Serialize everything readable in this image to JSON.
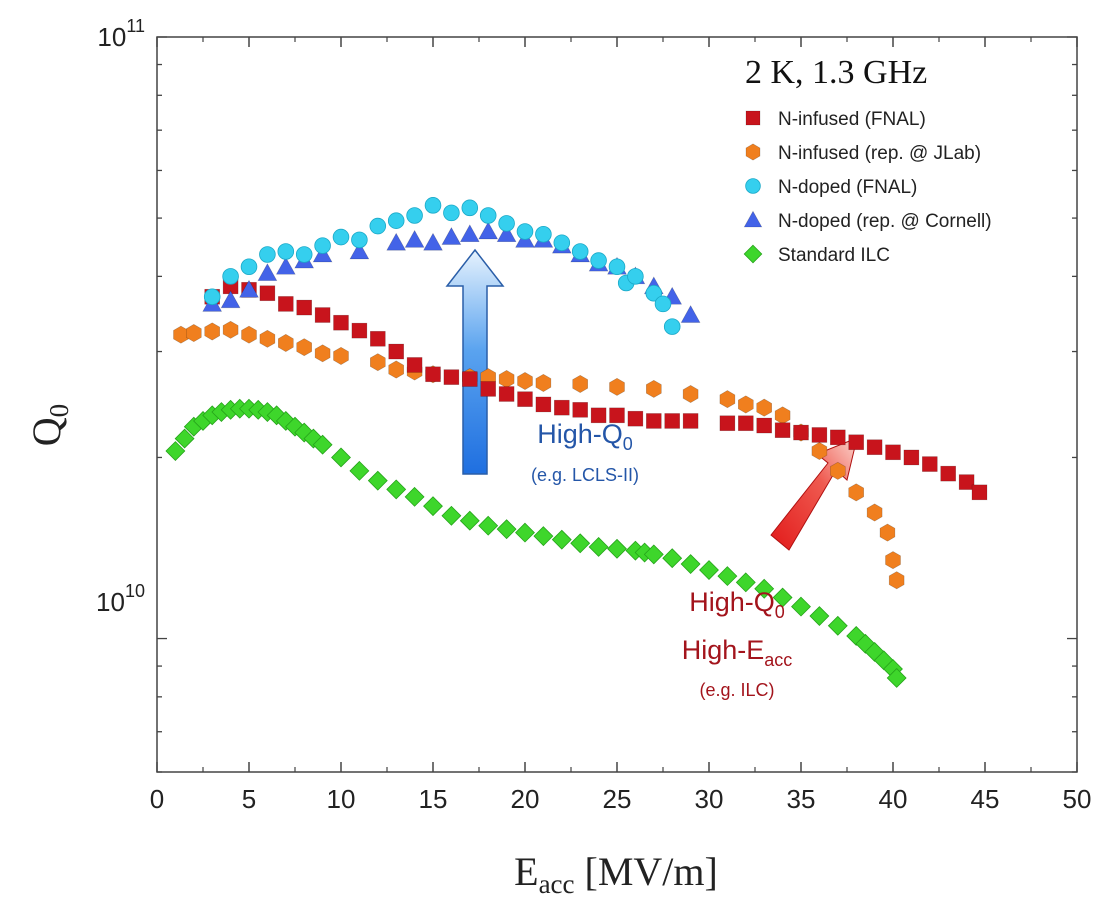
{
  "chart_data": {
    "type": "scatter",
    "title": "",
    "xlabel": "E",
    "xlabel_sub": "acc",
    "xlabel_unit": "[MV/m]",
    "ylabel": "Q",
    "ylabel_sub": "0",
    "log_y": true,
    "xlim": [
      0,
      50
    ],
    "ylim": [
      6000000000.0,
      100000000000.0
    ],
    "x_ticks": [
      "0",
      "5",
      "10",
      "15",
      "20",
      "25",
      "30",
      "35",
      "40",
      "45",
      "50"
    ],
    "y_tick_labels": [
      {
        "value": 100000000000.0,
        "base": "10",
        "exp": "11"
      },
      {
        "value": 10000000000.0,
        "base": "10",
        "exp": "10"
      }
    ],
    "grid": false,
    "legend_title": "2 K, 1.3 GHz",
    "legend_position": "top-right",
    "series": [
      {
        "name": "N-infused (FNAL)",
        "color": "#c8141c",
        "marker": "square",
        "points": [
          [
            3,
            37000000000.0
          ],
          [
            4,
            38500000000.0
          ],
          [
            5,
            38000000000.0
          ],
          [
            6,
            37500000000.0
          ],
          [
            7,
            36000000000.0
          ],
          [
            8,
            35500000000.0
          ],
          [
            9,
            34500000000.0
          ],
          [
            10,
            33500000000.0
          ],
          [
            11,
            32500000000.0
          ],
          [
            12,
            31500000000.0
          ],
          [
            13,
            30000000000.0
          ],
          [
            14,
            28500000000.0
          ],
          [
            15,
            27500000000.0
          ],
          [
            16,
            27200000000.0
          ],
          [
            17,
            27000000000.0
          ],
          [
            18,
            26000000000.0
          ],
          [
            19,
            25500000000.0
          ],
          [
            20,
            25000000000.0
          ],
          [
            21,
            24500000000.0
          ],
          [
            22,
            24200000000.0
          ],
          [
            23,
            24000000000.0
          ],
          [
            24,
            23500000000.0
          ],
          [
            25,
            23500000000.0
          ],
          [
            26,
            23200000000.0
          ],
          [
            27,
            23000000000.0
          ],
          [
            28,
            23000000000.0
          ],
          [
            29,
            23000000000.0
          ],
          [
            31,
            22800000000.0
          ],
          [
            32,
            22800000000.0
          ],
          [
            33,
            22600000000.0
          ],
          [
            34,
            22200000000.0
          ],
          [
            35,
            22000000000.0
          ],
          [
            36,
            21800000000.0
          ],
          [
            37,
            21600000000.0
          ],
          [
            38,
            21200000000.0
          ],
          [
            39,
            20800000000.0
          ],
          [
            40,
            20400000000.0
          ],
          [
            41,
            20000000000.0
          ],
          [
            42,
            19500000000.0
          ],
          [
            43,
            18800000000.0
          ],
          [
            44,
            18200000000.0
          ],
          [
            44.7,
            17500000000.0
          ]
        ]
      },
      {
        "name": "N-infused (rep. @ JLab)",
        "color": "#f07f1e",
        "marker": "hexagon",
        "points": [
          [
            1.3,
            32000000000.0
          ],
          [
            2,
            32200000000.0
          ],
          [
            3,
            32400000000.0
          ],
          [
            4,
            32600000000.0
          ],
          [
            5,
            32000000000.0
          ],
          [
            6,
            31500000000.0
          ],
          [
            7,
            31000000000.0
          ],
          [
            8,
            30500000000.0
          ],
          [
            9,
            29800000000.0
          ],
          [
            10,
            29500000000.0
          ],
          [
            12,
            28800000000.0
          ],
          [
            13,
            28000000000.0
          ],
          [
            14,
            27800000000.0
          ],
          [
            15,
            27500000000.0
          ],
          [
            17,
            27200000000.0
          ],
          [
            18,
            27200000000.0
          ],
          [
            19,
            27000000000.0
          ],
          [
            20,
            26800000000.0
          ],
          [
            21,
            26600000000.0
          ],
          [
            23,
            26500000000.0
          ],
          [
            25,
            26200000000.0
          ],
          [
            27,
            26000000000.0
          ],
          [
            29,
            25500000000.0
          ],
          [
            31,
            25000000000.0
          ],
          [
            32,
            24500000000.0
          ],
          [
            33,
            24200000000.0
          ],
          [
            34,
            23500000000.0
          ],
          [
            35,
            22000000000.0
          ],
          [
            36,
            20500000000.0
          ],
          [
            37,
            19000000000.0
          ],
          [
            38,
            17500000000.0
          ],
          [
            39,
            16200000000.0
          ],
          [
            39.7,
            15000000000.0
          ],
          [
            40,
            13500000000.0
          ],
          [
            40.2,
            12500000000.0
          ]
        ]
      },
      {
        "name": "N-doped (FNAL)",
        "color": "#35cfee",
        "marker": "circle",
        "points": [
          [
            3,
            37000000000.0
          ],
          [
            4,
            40000000000.0
          ],
          [
            5,
            41500000000.0
          ],
          [
            6,
            43500000000.0
          ],
          [
            7,
            44000000000.0
          ],
          [
            8,
            43500000000.0
          ],
          [
            9,
            45000000000.0
          ],
          [
            10,
            46500000000.0
          ],
          [
            11,
            46000000000.0
          ],
          [
            12,
            48500000000.0
          ],
          [
            13,
            49500000000.0
          ],
          [
            14,
            50500000000.0
          ],
          [
            15,
            52500000000.0
          ],
          [
            16,
            51000000000.0
          ],
          [
            17,
            52000000000.0
          ],
          [
            18,
            50500000000.0
          ],
          [
            19,
            49000000000.0
          ],
          [
            20,
            47500000000.0
          ],
          [
            21,
            47000000000.0
          ],
          [
            22,
            45500000000.0
          ],
          [
            23,
            44000000000.0
          ],
          [
            24,
            42500000000.0
          ],
          [
            25,
            41500000000.0
          ],
          [
            25.5,
            39000000000.0
          ],
          [
            26,
            40000000000.0
          ],
          [
            27,
            37500000000.0
          ],
          [
            27.5,
            36000000000.0
          ],
          [
            28,
            33000000000.0
          ]
        ]
      },
      {
        "name": "N-doped (rep. @ Cornell)",
        "color": "#4363e8",
        "marker": "triangle",
        "points": [
          [
            3,
            36000000000.0
          ],
          [
            4,
            36500000000.0
          ],
          [
            5,
            38000000000.0
          ],
          [
            6,
            40500000000.0
          ],
          [
            7,
            41500000000.0
          ],
          [
            8,
            42500000000.0
          ],
          [
            9,
            43500000000.0
          ],
          [
            11,
            44000000000.0
          ],
          [
            13,
            45500000000.0
          ],
          [
            14,
            46000000000.0
          ],
          [
            15,
            45500000000.0
          ],
          [
            16,
            46500000000.0
          ],
          [
            17,
            47000000000.0
          ],
          [
            18,
            47500000000.0
          ],
          [
            19,
            47000000000.0
          ],
          [
            20,
            46000000000.0
          ],
          [
            21,
            46000000000.0
          ],
          [
            22,
            45000000000.0
          ],
          [
            23,
            43500000000.0
          ],
          [
            24,
            42000000000.0
          ],
          [
            25,
            41500000000.0
          ],
          [
            26,
            40000000000.0
          ],
          [
            27,
            38500000000.0
          ],
          [
            28,
            37000000000.0
          ],
          [
            29,
            34500000000.0
          ]
        ]
      },
      {
        "name": "Standard ILC",
        "color": "#3ed62b",
        "marker": "diamond",
        "points": [
          [
            1,
            20500000000.0
          ],
          [
            1.5,
            21500000000.0
          ],
          [
            2,
            22500000000.0
          ],
          [
            2.5,
            23000000000.0
          ],
          [
            3,
            23500000000.0
          ],
          [
            3.5,
            23800000000.0
          ],
          [
            4,
            24000000000.0
          ],
          [
            4.5,
            24100000000.0
          ],
          [
            5,
            24100000000.0
          ],
          [
            5.5,
            24000000000.0
          ],
          [
            6,
            23800000000.0
          ],
          [
            6.5,
            23500000000.0
          ],
          [
            7,
            23000000000.0
          ],
          [
            7.5,
            22500000000.0
          ],
          [
            8,
            22000000000.0
          ],
          [
            8.5,
            21500000000.0
          ],
          [
            9,
            21000000000.0
          ],
          [
            10,
            20000000000.0
          ],
          [
            11,
            19000000000.0
          ],
          [
            12,
            18300000000.0
          ],
          [
            13,
            17700000000.0
          ],
          [
            14,
            17200000000.0
          ],
          [
            15,
            16600000000.0
          ],
          [
            16,
            16000000000.0
          ],
          [
            17,
            15700000000.0
          ],
          [
            18,
            15400000000.0
          ],
          [
            19,
            15200000000.0
          ],
          [
            20,
            15000000000.0
          ],
          [
            21,
            14800000000.0
          ],
          [
            22,
            14600000000.0
          ],
          [
            23,
            14400000000.0
          ],
          [
            24,
            14200000000.0
          ],
          [
            25,
            14100000000.0
          ],
          [
            26,
            14000000000.0
          ],
          [
            26.5,
            13900000000.0
          ],
          [
            27,
            13800000000.0
          ],
          [
            28,
            13600000000.0
          ],
          [
            29,
            13300000000.0
          ],
          [
            30,
            13000000000.0
          ],
          [
            31,
            12700000000.0
          ],
          [
            32,
            12400000000.0
          ],
          [
            33,
            12100000000.0
          ],
          [
            34,
            11700000000.0
          ],
          [
            35,
            11300000000.0
          ],
          [
            36,
            10900000000.0
          ],
          [
            37,
            10500000000.0
          ],
          [
            38,
            10100000000.0
          ],
          [
            38.5,
            9800000000.0
          ],
          [
            39,
            9500000000.0
          ],
          [
            39.5,
            9200000000.0
          ],
          [
            40,
            8900000000.0
          ],
          [
            40.2,
            8600000000.0
          ]
        ]
      }
    ],
    "annotations": {
      "blue": {
        "line1": "High-Q",
        "line1_sub": "0",
        "line2": "(e.g. LCLS-II)",
        "color": "#2456a8"
      },
      "red": {
        "line1": "High-Q",
        "line1_sub": "0",
        "line2": "High-E",
        "line2_sub": "acc",
        "line3": "(e.g. ILC)",
        "color": "#a3141c"
      }
    }
  }
}
